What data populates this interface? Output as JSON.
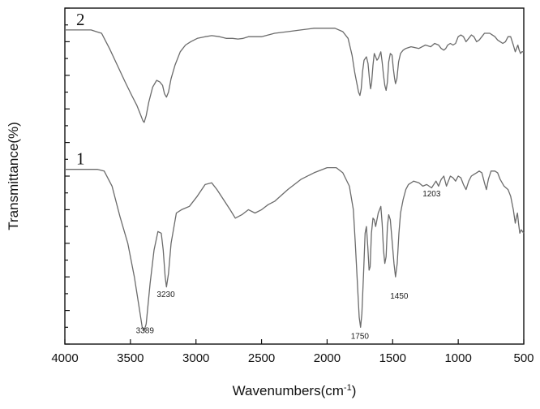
{
  "chart_data": {
    "type": "line",
    "xlabel": "Wavenumbers(cm",
    "xlabel_superscript": "-1",
    "xlabel_suffix": ")",
    "ylabel": "Transmittance(%)",
    "xlim": [
      4000,
      500
    ],
    "ylim": [
      0,
      100
    ],
    "x_ticks": [
      4000,
      3500,
      3000,
      2500,
      2000,
      1500,
      1000,
      500
    ],
    "grid": false,
    "series": [
      {
        "name": "1",
        "color": "#6b6b6b",
        "points": [
          [
            4000,
            52
          ],
          [
            3900,
            52
          ],
          [
            3750,
            52
          ],
          [
            3700,
            51.5
          ],
          [
            3640,
            47
          ],
          [
            3580,
            38
          ],
          [
            3520,
            30
          ],
          [
            3470,
            20
          ],
          [
            3430,
            10
          ],
          [
            3410,
            5
          ],
          [
            3395,
            4
          ],
          [
            3380,
            6
          ],
          [
            3350,
            18
          ],
          [
            3320,
            28
          ],
          [
            3290,
            33.5
          ],
          [
            3265,
            33
          ],
          [
            3250,
            28
          ],
          [
            3235,
            20
          ],
          [
            3225,
            17
          ],
          [
            3210,
            21
          ],
          [
            3190,
            30
          ],
          [
            3150,
            39
          ],
          [
            3110,
            40
          ],
          [
            3050,
            41
          ],
          [
            2990,
            44
          ],
          [
            2930,
            47.5
          ],
          [
            2880,
            48
          ],
          [
            2840,
            46
          ],
          [
            2790,
            43
          ],
          [
            2740,
            40
          ],
          [
            2700,
            37.5
          ],
          [
            2650,
            38.5
          ],
          [
            2600,
            40
          ],
          [
            2550,
            39
          ],
          [
            2500,
            40
          ],
          [
            2450,
            41.5
          ],
          [
            2400,
            42.5
          ],
          [
            2300,
            46
          ],
          [
            2200,
            49
          ],
          [
            2100,
            51
          ],
          [
            2000,
            52.5
          ],
          [
            1930,
            52.5
          ],
          [
            1880,
            51
          ],
          [
            1830,
            47
          ],
          [
            1800,
            40
          ],
          [
            1785,
            30
          ],
          [
            1770,
            19
          ],
          [
            1755,
            8
          ],
          [
            1745,
            5
          ],
          [
            1735,
            9
          ],
          [
            1722,
            21
          ],
          [
            1710,
            33
          ],
          [
            1700,
            35
          ],
          [
            1690,
            29
          ],
          [
            1680,
            22
          ],
          [
            1672,
            23
          ],
          [
            1662,
            33
          ],
          [
            1650,
            37.5
          ],
          [
            1640,
            37
          ],
          [
            1630,
            35
          ],
          [
            1610,
            39
          ],
          [
            1590,
            41
          ],
          [
            1580,
            36
          ],
          [
            1570,
            28
          ],
          [
            1560,
            24
          ],
          [
            1550,
            26
          ],
          [
            1540,
            35
          ],
          [
            1530,
            38.5
          ],
          [
            1518,
            37
          ],
          [
            1505,
            31
          ],
          [
            1490,
            24
          ],
          [
            1478,
            20
          ],
          [
            1465,
            24
          ],
          [
            1452,
            33
          ],
          [
            1440,
            39
          ],
          [
            1420,
            43
          ],
          [
            1400,
            46
          ],
          [
            1380,
            47.5
          ],
          [
            1340,
            48.5
          ],
          [
            1300,
            48
          ],
          [
            1270,
            47
          ],
          [
            1240,
            47.5
          ],
          [
            1203,
            46.5
          ],
          [
            1170,
            48.5
          ],
          [
            1150,
            47
          ],
          [
            1130,
            49
          ],
          [
            1110,
            50
          ],
          [
            1090,
            47
          ],
          [
            1075,
            48.5
          ],
          [
            1060,
            50
          ],
          [
            1040,
            49.5
          ],
          [
            1020,
            48.5
          ],
          [
            1000,
            50
          ],
          [
            980,
            49.5
          ],
          [
            960,
            47.5
          ],
          [
            940,
            46
          ],
          [
            920,
            48.5
          ],
          [
            900,
            50
          ],
          [
            880,
            50.5
          ],
          [
            860,
            51
          ],
          [
            840,
            51.5
          ],
          [
            820,
            51
          ],
          [
            800,
            48
          ],
          [
            785,
            46
          ],
          [
            770,
            49
          ],
          [
            750,
            51.5
          ],
          [
            720,
            51.5
          ],
          [
            700,
            51
          ],
          [
            680,
            49
          ],
          [
            650,
            47
          ],
          [
            620,
            46
          ],
          [
            600,
            44
          ],
          [
            580,
            40
          ],
          [
            565,
            36
          ],
          [
            555,
            38
          ],
          [
            548,
            39
          ],
          [
            540,
            36
          ],
          [
            530,
            33
          ],
          [
            520,
            34
          ],
          [
            510,
            33.5
          ],
          [
            500,
            33
          ]
        ]
      },
      {
        "name": "2",
        "color": "#6b6b6b",
        "points": [
          [
            4000,
            93.5
          ],
          [
            3900,
            93.5
          ],
          [
            3800,
            93.5
          ],
          [
            3760,
            93
          ],
          [
            3720,
            92.5
          ],
          [
            3660,
            88
          ],
          [
            3600,
            83
          ],
          [
            3540,
            78
          ],
          [
            3490,
            74
          ],
          [
            3450,
            71
          ],
          [
            3420,
            68
          ],
          [
            3405,
            66.5
          ],
          [
            3395,
            66
          ],
          [
            3380,
            68
          ],
          [
            3360,
            72
          ],
          [
            3330,
            76.5
          ],
          [
            3300,
            78.5
          ],
          [
            3275,
            78
          ],
          [
            3255,
            77
          ],
          [
            3240,
            74.5
          ],
          [
            3225,
            73.5
          ],
          [
            3210,
            75
          ],
          [
            3190,
            79
          ],
          [
            3160,
            83
          ],
          [
            3120,
            87
          ],
          [
            3080,
            89
          ],
          [
            3040,
            90
          ],
          [
            2990,
            91
          ],
          [
            2930,
            91.5
          ],
          [
            2880,
            91.8
          ],
          [
            2820,
            91.5
          ],
          [
            2770,
            91
          ],
          [
            2720,
            91
          ],
          [
            2680,
            90.8
          ],
          [
            2640,
            91
          ],
          [
            2600,
            91.5
          ],
          [
            2550,
            91.5
          ],
          [
            2500,
            91.5
          ],
          [
            2400,
            92.5
          ],
          [
            2300,
            93
          ],
          [
            2200,
            93.5
          ],
          [
            2100,
            94
          ],
          [
            2000,
            94
          ],
          [
            1940,
            94
          ],
          [
            1880,
            93
          ],
          [
            1840,
            91
          ],
          [
            1810,
            86
          ],
          [
            1790,
            81
          ],
          [
            1775,
            78
          ],
          [
            1760,
            75
          ],
          [
            1750,
            74
          ],
          [
            1740,
            76
          ],
          [
            1730,
            81
          ],
          [
            1718,
            84.5
          ],
          [
            1700,
            85.5
          ],
          [
            1688,
            83.5
          ],
          [
            1675,
            78
          ],
          [
            1668,
            76
          ],
          [
            1660,
            78
          ],
          [
            1650,
            83
          ],
          [
            1640,
            86.5
          ],
          [
            1630,
            85.5
          ],
          [
            1620,
            84.5
          ],
          [
            1610,
            85
          ],
          [
            1600,
            86
          ],
          [
            1590,
            87
          ],
          [
            1580,
            84
          ],
          [
            1570,
            80
          ],
          [
            1560,
            77
          ],
          [
            1550,
            75.5
          ],
          [
            1540,
            78
          ],
          [
            1530,
            84
          ],
          [
            1518,
            86.5
          ],
          [
            1505,
            86
          ],
          [
            1495,
            82
          ],
          [
            1485,
            79
          ],
          [
            1478,
            77.5
          ],
          [
            1468,
            79
          ],
          [
            1455,
            84
          ],
          [
            1440,
            86.5
          ],
          [
            1420,
            87.5
          ],
          [
            1400,
            88
          ],
          [
            1360,
            88.5
          ],
          [
            1300,
            88
          ],
          [
            1250,
            89
          ],
          [
            1210,
            88.5
          ],
          [
            1180,
            89.5
          ],
          [
            1150,
            89
          ],
          [
            1130,
            88
          ],
          [
            1110,
            87.5
          ],
          [
            1095,
            88
          ],
          [
            1080,
            89
          ],
          [
            1060,
            89.5
          ],
          [
            1040,
            89
          ],
          [
            1020,
            89.5
          ],
          [
            1000,
            91.5
          ],
          [
            980,
            92
          ],
          [
            960,
            91.5
          ],
          [
            940,
            90
          ],
          [
            920,
            91
          ],
          [
            900,
            92
          ],
          [
            880,
            91.5
          ],
          [
            860,
            90
          ],
          [
            840,
            90.5
          ],
          [
            820,
            91.5
          ],
          [
            800,
            92.5
          ],
          [
            780,
            92.5
          ],
          [
            760,
            92.5
          ],
          [
            740,
            92
          ],
          [
            720,
            91.5
          ],
          [
            700,
            90.5
          ],
          [
            680,
            90
          ],
          [
            660,
            89.5
          ],
          [
            640,
            90
          ],
          [
            620,
            91.5
          ],
          [
            600,
            91.5
          ],
          [
            580,
            89
          ],
          [
            565,
            87
          ],
          [
            555,
            88
          ],
          [
            545,
            89
          ],
          [
            535,
            87.5
          ],
          [
            525,
            86.5
          ],
          [
            515,
            87
          ],
          [
            500,
            87
          ]
        ]
      }
    ],
    "annotations": [
      {
        "text": "3389",
        "x": 3389,
        "y": 3.3
      },
      {
        "text": "3230",
        "x": 3230,
        "y": 14
      },
      {
        "text": "1750",
        "x": 1750,
        "y": 1.6
      },
      {
        "text": "1450",
        "x": 1450,
        "y": 13.5
      },
      {
        "text": "1203",
        "x": 1203,
        "y": 44
      }
    ]
  }
}
